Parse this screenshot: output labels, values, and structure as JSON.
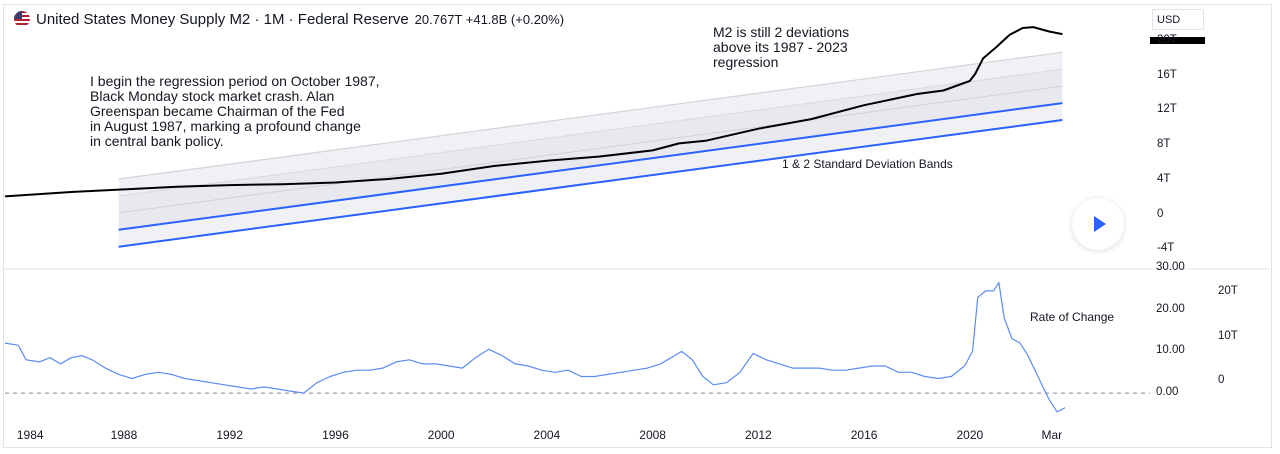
{
  "header": {
    "flag_icon": "us-flag-icon",
    "title": "United States Money Supply M2 · 1M · Federal Reserve",
    "last_value": "20.767T",
    "change": "+41.8B (+0.20%)"
  },
  "currency": "USD",
  "annotations": {
    "regression_note": "I begin the regression period on October 1987,\nBlack Monday stock market crash. Alan\nGreenspan became Chairman of the Fed\nin August 1987, marking a profound change\nin central bank policy.",
    "deviation_note": "M2 is still 2 deviations\nabove its 1987 - 2023\nregression",
    "bands_note": "1 & 2 Standard Deviation Bands",
    "roc_note": "Rate of Change"
  },
  "colors": {
    "series": "#000000",
    "bands": "#2962ff",
    "roc": "#5b8def",
    "fill": "#e8e9ee"
  },
  "play_icon": "play-icon",
  "chart_data": [
    {
      "type": "line",
      "name": "M2",
      "ylim": [
        -5,
        21.5
      ],
      "y_ticks": [
        "-4T",
        "0",
        "4T",
        "8T",
        "12T",
        "16T",
        "20T"
      ],
      "x": [
        1983.5,
        1986,
        1988,
        1990,
        1992,
        1994,
        1996,
        1998,
        2000,
        2002,
        2004,
        2006,
        2008,
        2009,
        2010,
        2012,
        2014,
        2016,
        2018,
        2019,
        2020.0,
        2020.2,
        2020.5,
        2021.0,
        2021.5,
        2022.0,
        2022.4,
        2023.0,
        2023.5
      ],
      "values": [
        2.1,
        2.6,
        2.9,
        3.2,
        3.4,
        3.5,
        3.7,
        4.1,
        4.7,
        5.6,
        6.2,
        6.7,
        7.4,
        8.2,
        8.5,
        9.9,
        11.0,
        12.6,
        13.9,
        14.3,
        15.4,
        16.2,
        18.0,
        19.3,
        20.7,
        21.5,
        21.6,
        21.1,
        20.8
      ],
      "regression": {
        "x_start": 1987.8,
        "x_end": 2023.5,
        "center_start": 0.2,
        "center_end": 14.8,
        "sigma": 1.95,
        "bands": [
          "1 & 2 Standard Deviation Bands"
        ]
      }
    },
    {
      "type": "line",
      "name": "Rate of Change",
      "ylim": [
        -5,
        30
      ],
      "y_ticks": [
        "0.00",
        "10.00",
        "20.00",
        "30.00"
      ],
      "baseline": 0,
      "x": [
        1983.5,
        1984.0,
        1984.3,
        1984.8,
        1985.2,
        1985.6,
        1986.0,
        1986.4,
        1986.8,
        1987.3,
        1987.8,
        1988.3,
        1988.8,
        1989.3,
        1989.8,
        1990.3,
        1990.8,
        1991.3,
        1991.8,
        1992.3,
        1992.8,
        1993.3,
        1993.8,
        1994.3,
        1994.8,
        1995.3,
        1995.8,
        1996.3,
        1996.8,
        1997.3,
        1997.8,
        1998.3,
        1998.8,
        1999.3,
        1999.8,
        2000.3,
        2000.8,
        2001.3,
        2001.8,
        2002.3,
        2002.8,
        2003.3,
        2003.8,
        2004.3,
        2004.8,
        2005.3,
        2005.8,
        2006.3,
        2006.8,
        2007.3,
        2007.8,
        2008.3,
        2008.7,
        2009.1,
        2009.5,
        2009.9,
        2010.3,
        2010.8,
        2011.3,
        2011.8,
        2012.3,
        2012.8,
        2013.3,
        2013.8,
        2014.3,
        2014.8,
        2015.3,
        2015.8,
        2016.3,
        2016.8,
        2017.3,
        2017.8,
        2018.3,
        2018.8,
        2019.3,
        2019.8,
        2020.1,
        2020.3,
        2020.6,
        2020.9,
        2021.1,
        2021.3,
        2021.6,
        2021.9,
        2022.2,
        2022.5,
        2022.8,
        2023.0,
        2023.3,
        2023.6
      ],
      "values": [
        12.0,
        11.5,
        8.0,
        7.5,
        8.5,
        7.0,
        8.5,
        9.0,
        8.0,
        6.0,
        4.5,
        3.5,
        4.5,
        5.0,
        4.5,
        3.5,
        3.0,
        2.5,
        2.0,
        1.5,
        1.0,
        1.5,
        1.0,
        0.5,
        0.0,
        2.5,
        4.0,
        5.0,
        5.5,
        5.5,
        6.0,
        7.5,
        8.0,
        7.0,
        7.0,
        6.5,
        6.0,
        8.5,
        10.5,
        9.0,
        7.0,
        6.5,
        5.5,
        5.0,
        5.5,
        4.0,
        4.0,
        4.5,
        5.0,
        5.5,
        6.0,
        7.0,
        8.5,
        10.0,
        8.0,
        4.0,
        2.0,
        2.5,
        5.0,
        9.5,
        8.0,
        7.0,
        6.0,
        6.0,
        6.0,
        5.5,
        5.5,
        6.0,
        6.5,
        6.5,
        5.0,
        5.0,
        4.0,
        3.5,
        4.0,
        6.5,
        10.0,
        23.0,
        24.5,
        24.5,
        26.5,
        18.0,
        13.0,
        12.0,
        9.0,
        5.0,
        1.0,
        -1.5,
        -4.5,
        -3.5
      ]
    }
  ],
  "right_ticks_lower": [
    "20T",
    "10T",
    "0"
  ],
  "x_ticks": [
    "1984",
    "1988",
    "1992",
    "1996",
    "2000",
    "2004",
    "2008",
    "2012",
    "2016",
    "2020",
    "Mar"
  ]
}
